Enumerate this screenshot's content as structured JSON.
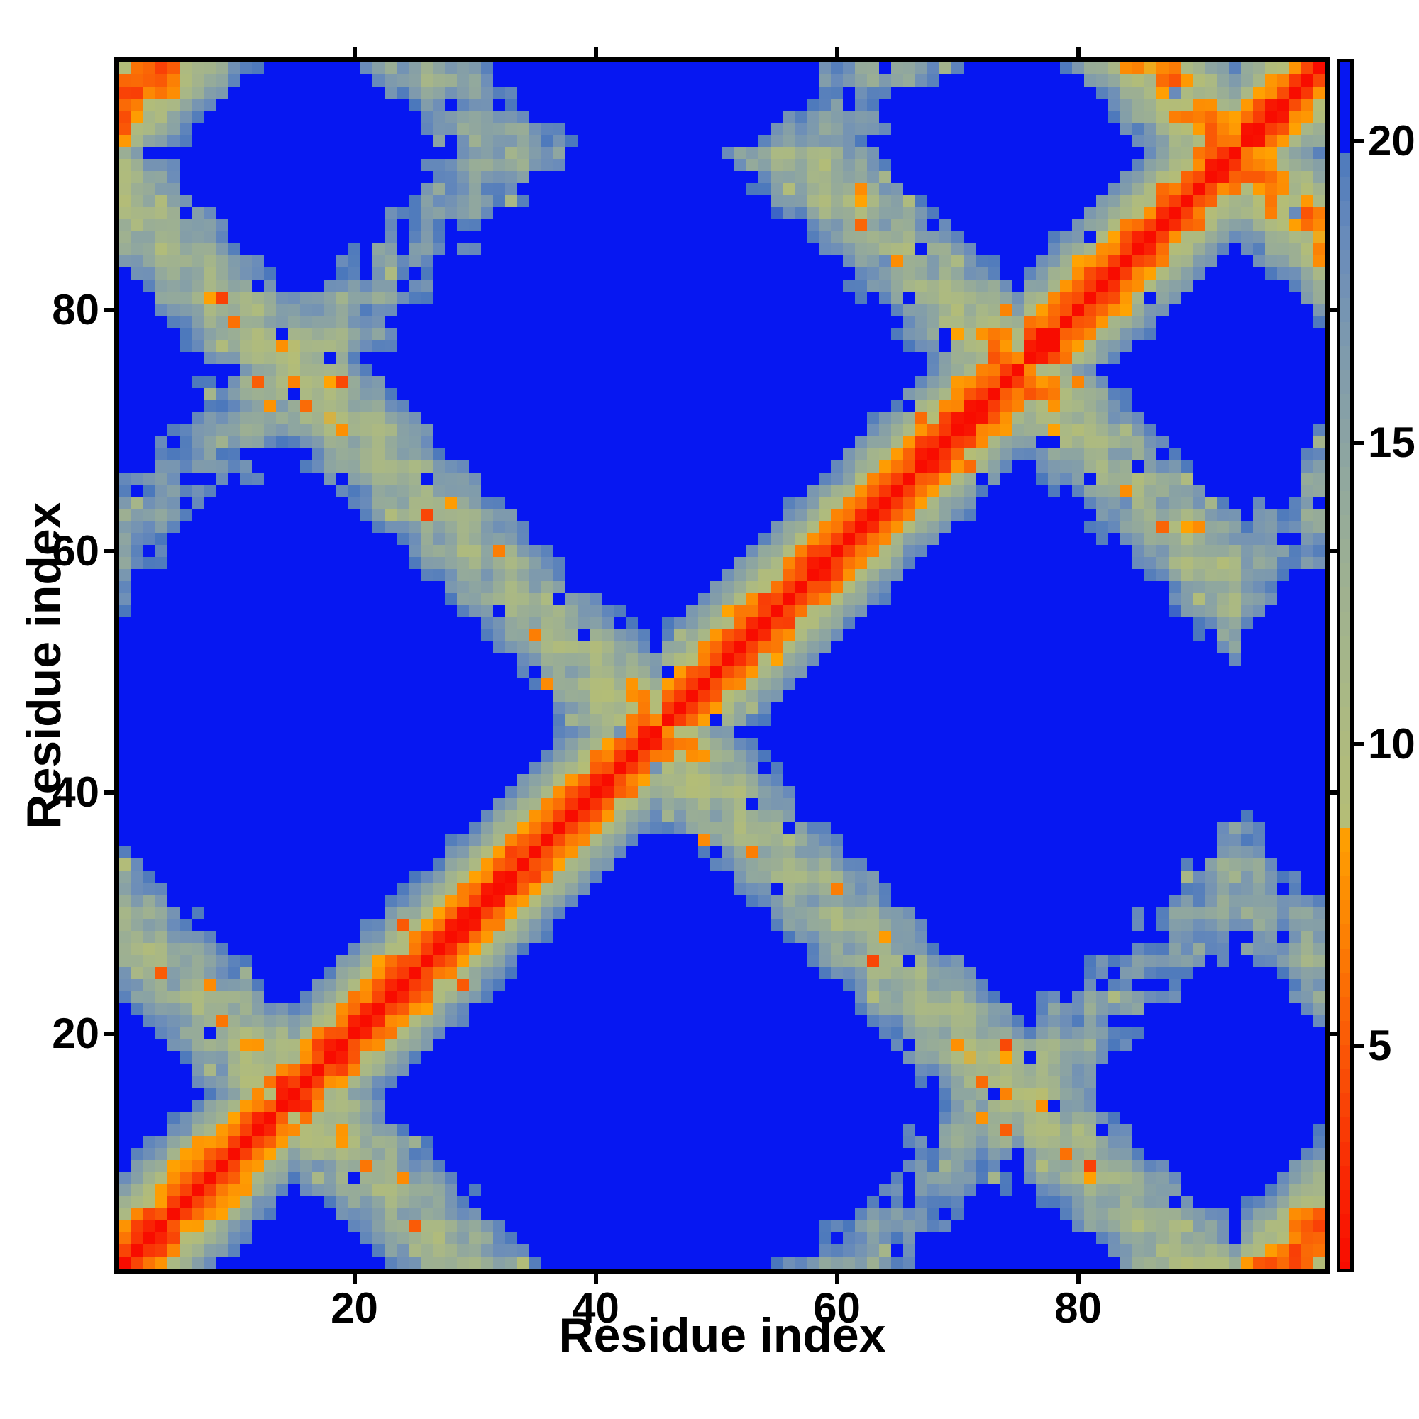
{
  "figure": {
    "background": "#ffffff",
    "frame_color": "#000000"
  },
  "chart_data": {
    "type": "heatmap",
    "title": "",
    "xlabel": "Residue index",
    "ylabel": "Residue index",
    "n_residues": 100,
    "x_range": [
      1,
      100
    ],
    "y_range": [
      1,
      100
    ],
    "x_ticks": [
      20,
      40,
      60,
      80
    ],
    "y_ticks": [
      20,
      40,
      60,
      80
    ],
    "grid": false,
    "legend": "colorbar-right",
    "colorbar": {
      "ticks": [
        5,
        10,
        15,
        20
      ],
      "vmin": 1.3,
      "vmax": 21.3,
      "cap_value": 20,
      "cap_color": "#0617f2",
      "quantize_step": 0.4
    },
    "colormap_stops": [
      [
        1.3,
        "#f80c00"
      ],
      [
        2.6,
        "#f92304"
      ],
      [
        4.0,
        "#f94306"
      ],
      [
        5.5,
        "#fa6306"
      ],
      [
        7.0,
        "#fc8404"
      ],
      [
        8.7,
        "#ffa402"
      ],
      [
        8.72,
        "#b4bd76"
      ],
      [
        10.5,
        "#abb983"
      ],
      [
        12.5,
        "#9fb190"
      ],
      [
        14.5,
        "#90a79f"
      ],
      [
        16.5,
        "#7e9aad"
      ],
      [
        18.3,
        "#6a8cba"
      ],
      [
        19.99,
        "#4a77bc"
      ],
      [
        20.0,
        "#0617f2"
      ],
      [
        21.3,
        "#0617f2"
      ]
    ],
    "matrix_model": {
      "description": "Symmetric residue-residue distance matrix (angstrom) of a folded chain: red self-diagonal, X-shaped antiparallel hairpin arcs crossing the diagonal near the turn residues, blue regions are distances above the 20 angstrom cap",
      "turn_residues": [
        15,
        45,
        75,
        93
      ],
      "segment_axes_xy": [
        [
          0,
          0
        ],
        [
          8.8,
          0
        ],
        [
          8.8,
          8.8
        ],
        [
          0,
          8.8
        ],
        [
          -2.2,
          3.0
        ]
      ],
      "bundle_center_xy": [
        4.4,
        4.4
      ],
      "rise_per_residue": 2.55,
      "helix_radius": 1.6,
      "helix_period": 3.63,
      "segment_bow": 2.6,
      "turn_smoothing_span": 4,
      "coord_jitter": 0.35,
      "noise_sigma": 0.9,
      "speckle_far_prob": 0.022,
      "speckle_far_add": [
        6,
        14
      ],
      "speckle_near_prob": 0.028,
      "speckle_near_sub": [
        4,
        9
      ],
      "random_seed": 1234567
    }
  }
}
